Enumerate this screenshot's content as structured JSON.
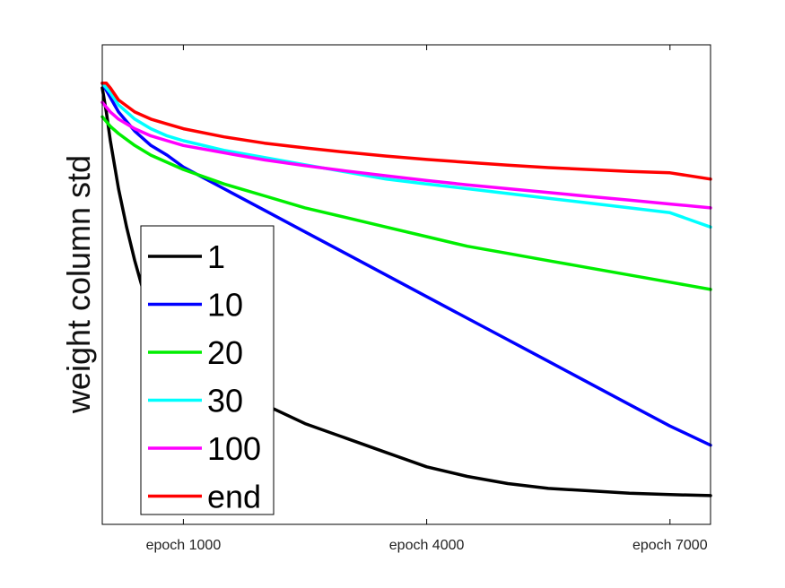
{
  "chart_data": {
    "type": "line",
    "title": "",
    "xlabel": "",
    "ylabel": "weight column std",
    "x_tick_labels": [
      "epoch 1000",
      "epoch 4000",
      "epoch 7000"
    ],
    "x_ticks": [
      1000,
      4000,
      7000
    ],
    "xlim": [
      0,
      7500
    ],
    "ylim": [
      0,
      1
    ],
    "grid": false,
    "legend_position": "bottom-left",
    "series": [
      {
        "name": "1",
        "color": "#000000",
        "x": [
          0,
          50,
          100,
          200,
          300,
          400,
          500,
          600,
          700,
          800,
          900,
          1000,
          1200,
          1500,
          2000,
          2500,
          3000,
          3500,
          4000,
          4500,
          5000,
          5500,
          6000,
          6500,
          7000,
          7500
        ],
        "y": [
          0.91,
          0.86,
          0.8,
          0.7,
          0.62,
          0.55,
          0.49,
          0.44,
          0.41,
          0.38,
          0.36,
          0.34,
          0.31,
          0.29,
          0.25,
          0.21,
          0.18,
          0.15,
          0.12,
          0.1,
          0.085,
          0.075,
          0.07,
          0.065,
          0.062,
          0.06
        ]
      },
      {
        "name": "10",
        "color": "#0000ff",
        "x": [
          0,
          100,
          200,
          400,
          600,
          800,
          1000,
          1500,
          2000,
          2500,
          3000,
          3500,
          4000,
          4500,
          5000,
          5500,
          6000,
          6500,
          7000,
          7500
        ],
        "y": [
          0.92,
          0.89,
          0.86,
          0.82,
          0.79,
          0.77,
          0.745,
          0.7,
          0.655,
          0.61,
          0.565,
          0.52,
          0.475,
          0.43,
          0.385,
          0.34,
          0.295,
          0.25,
          0.205,
          0.165
        ]
      },
      {
        "name": "20",
        "color": "#00ee00",
        "x": [
          0,
          100,
          200,
          400,
          600,
          800,
          1000,
          1500,
          2000,
          2500,
          3000,
          3500,
          4000,
          4500,
          5000,
          5500,
          6000,
          6500,
          7000,
          7500
        ],
        "y": [
          0.85,
          0.83,
          0.815,
          0.79,
          0.77,
          0.755,
          0.74,
          0.71,
          0.685,
          0.66,
          0.64,
          0.62,
          0.6,
          0.58,
          0.565,
          0.55,
          0.535,
          0.52,
          0.505,
          0.49
        ]
      },
      {
        "name": "30",
        "color": "#00ffff",
        "x": [
          0,
          100,
          200,
          400,
          600,
          800,
          1000,
          1500,
          2000,
          2500,
          3000,
          3500,
          4000,
          4500,
          5000,
          5500,
          6000,
          6500,
          7000,
          7500
        ],
        "y": [
          0.92,
          0.9,
          0.875,
          0.845,
          0.825,
          0.81,
          0.8,
          0.78,
          0.765,
          0.75,
          0.735,
          0.72,
          0.71,
          0.7,
          0.69,
          0.68,
          0.67,
          0.66,
          0.65,
          0.62
        ]
      },
      {
        "name": "100",
        "color": "#ff00ff",
        "x": [
          0,
          100,
          200,
          400,
          600,
          800,
          1000,
          1500,
          2000,
          2500,
          3000,
          3500,
          4000,
          4500,
          5000,
          5500,
          6000,
          6500,
          7000,
          7500
        ],
        "y": [
          0.88,
          0.86,
          0.845,
          0.825,
          0.81,
          0.8,
          0.79,
          0.775,
          0.76,
          0.748,
          0.737,
          0.727,
          0.717,
          0.708,
          0.7,
          0.692,
          0.684,
          0.676,
          0.668,
          0.66
        ]
      },
      {
        "name": "end",
        "color": "#ff0000",
        "x": [
          0,
          50,
          100,
          200,
          400,
          600,
          800,
          1000,
          1500,
          2000,
          2500,
          3000,
          3500,
          4000,
          4500,
          5000,
          5500,
          6000,
          6500,
          7000,
          7500
        ],
        "y": [
          0.92,
          0.92,
          0.91,
          0.885,
          0.86,
          0.845,
          0.835,
          0.825,
          0.808,
          0.795,
          0.785,
          0.776,
          0.768,
          0.761,
          0.755,
          0.749,
          0.744,
          0.74,
          0.736,
          0.733,
          0.72
        ]
      }
    ]
  }
}
